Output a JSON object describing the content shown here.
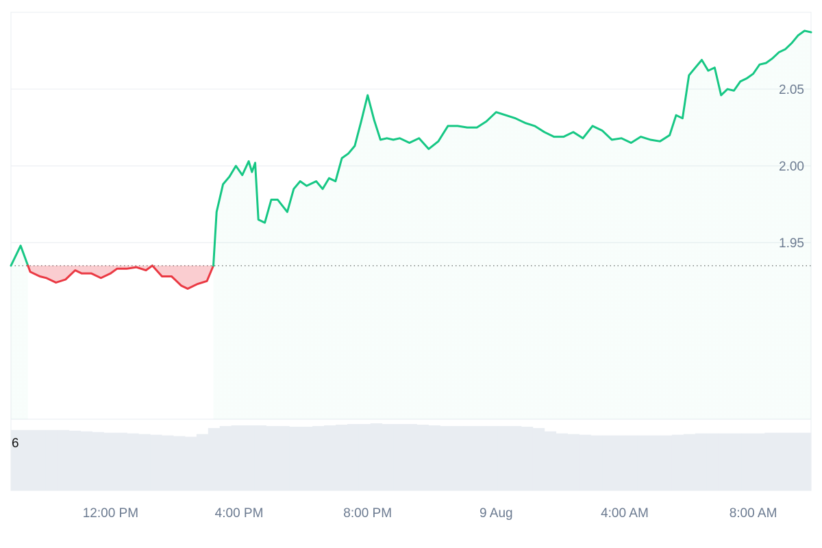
{
  "chart_data": {
    "type": "area",
    "title": "",
    "xlabel": "",
    "ylabel": "",
    "ylim": [
      1.835,
      2.1
    ],
    "y_ticks": [
      "2.05",
      "2.00",
      "1.95"
    ],
    "y_tick_values": [
      2.05,
      2.0,
      1.95
    ],
    "x_ticks": [
      "12:00 PM",
      "4:00 PM",
      "8:00 PM",
      "9 Aug",
      "4:00 AM",
      "8:00 AM"
    ],
    "x_tick_hours": [
      12,
      16,
      20,
      24,
      28,
      32
    ],
    "x_range_hours": [
      8.9,
      33.8
    ],
    "baseline": 1.935,
    "grid": true,
    "colors": {
      "up_line": "#16c784",
      "down_line": "#ea3943",
      "up_fill": "#16c784",
      "down_fill": "#ea3943",
      "grid": "#eceff3",
      "volume": "#e9edf2",
      "axis_text": "#6b7a90"
    },
    "series": [
      {
        "x": [
          8.9,
          9.2,
          9.5,
          9.8,
          10.0,
          10.3,
          10.6,
          10.9,
          11.1,
          11.4,
          11.7,
          12.0,
          12.2,
          12.5,
          12.8,
          13.1,
          13.3,
          13.6,
          13.9,
          14.2,
          14.4,
          14.7,
          15.0,
          15.2,
          15.3,
          15.5,
          15.7,
          15.9,
          16.1,
          16.3,
          16.4,
          16.5,
          16.6,
          16.8,
          17.0,
          17.2,
          17.5,
          17.7,
          17.9,
          18.1,
          18.4,
          18.6,
          18.8,
          19.0,
          19.2,
          19.4,
          19.6,
          19.8,
          20.0,
          20.2,
          20.4,
          20.6,
          20.8,
          21.0,
          21.3,
          21.6,
          21.9,
          22.2,
          22.5,
          22.8,
          23.1,
          23.4,
          23.7,
          24.0,
          24.3,
          24.6,
          24.9,
          25.2,
          25.5,
          25.8,
          26.1,
          26.4,
          26.7,
          27.0,
          27.3,
          27.6,
          27.9,
          28.2,
          28.5,
          28.8,
          29.1,
          29.4,
          29.6,
          29.8,
          30.0,
          30.2,
          30.4,
          30.6,
          30.8,
          31.0,
          31.2,
          31.4,
          31.6,
          31.8,
          32.0,
          32.2,
          32.4,
          32.6,
          32.8,
          33.0,
          33.2,
          33.4,
          33.6,
          33.8
        ],
        "values": [
          1.935,
          1.948,
          1.931,
          1.928,
          1.927,
          1.924,
          1.926,
          1.932,
          1.93,
          1.93,
          1.927,
          1.93,
          1.933,
          1.933,
          1.934,
          1.932,
          1.935,
          1.928,
          1.928,
          1.922,
          1.92,
          1.923,
          1.925,
          1.935,
          1.97,
          1.988,
          1.993,
          2.0,
          1.994,
          2.003,
          1.996,
          2.002,
          1.965,
          1.963,
          1.978,
          1.978,
          1.97,
          1.985,
          1.99,
          1.987,
          1.99,
          1.985,
          1.992,
          1.99,
          2.005,
          2.008,
          2.013,
          2.029,
          2.046,
          2.03,
          2.017,
          2.018,
          2.017,
          2.018,
          2.015,
          2.018,
          2.011,
          2.016,
          2.026,
          2.026,
          2.025,
          2.025,
          2.029,
          2.035,
          2.033,
          2.031,
          2.028,
          2.026,
          2.022,
          2.019,
          2.019,
          2.022,
          2.018,
          2.026,
          2.023,
          2.017,
          2.018,
          2.015,
          2.019,
          2.017,
          2.016,
          2.02,
          2.033,
          2.031,
          2.059,
          2.064,
          2.069,
          2.062,
          2.064,
          2.046,
          2.05,
          2.049,
          2.055,
          2.057,
          2.06,
          2.066,
          2.067,
          2.07,
          2.074,
          2.076,
          2.08,
          2.085,
          2.088,
          2.087
        ]
      }
    ],
    "volume_label": "6",
    "volume": [
      0.9,
      0.9,
      0.9,
      0.9,
      0.9,
      0.89,
      0.88,
      0.87,
      0.86,
      0.86,
      0.85,
      0.84,
      0.83,
      0.82,
      0.81,
      0.8,
      0.84,
      0.93,
      0.96,
      0.97,
      0.97,
      0.97,
      0.96,
      0.96,
      0.95,
      0.95,
      0.96,
      0.97,
      0.98,
      0.99,
      0.99,
      1.0,
      0.99,
      0.99,
      0.99,
      0.98,
      0.97,
      0.96,
      0.96,
      0.96,
      0.96,
      0.96,
      0.96,
      0.96,
      0.95,
      0.93,
      0.88,
      0.85,
      0.84,
      0.83,
      0.82,
      0.82,
      0.82,
      0.82,
      0.82,
      0.82,
      0.82,
      0.83,
      0.84,
      0.85,
      0.85,
      0.85,
      0.85,
      0.85,
      0.85,
      0.86,
      0.86,
      0.86,
      0.86
    ]
  }
}
